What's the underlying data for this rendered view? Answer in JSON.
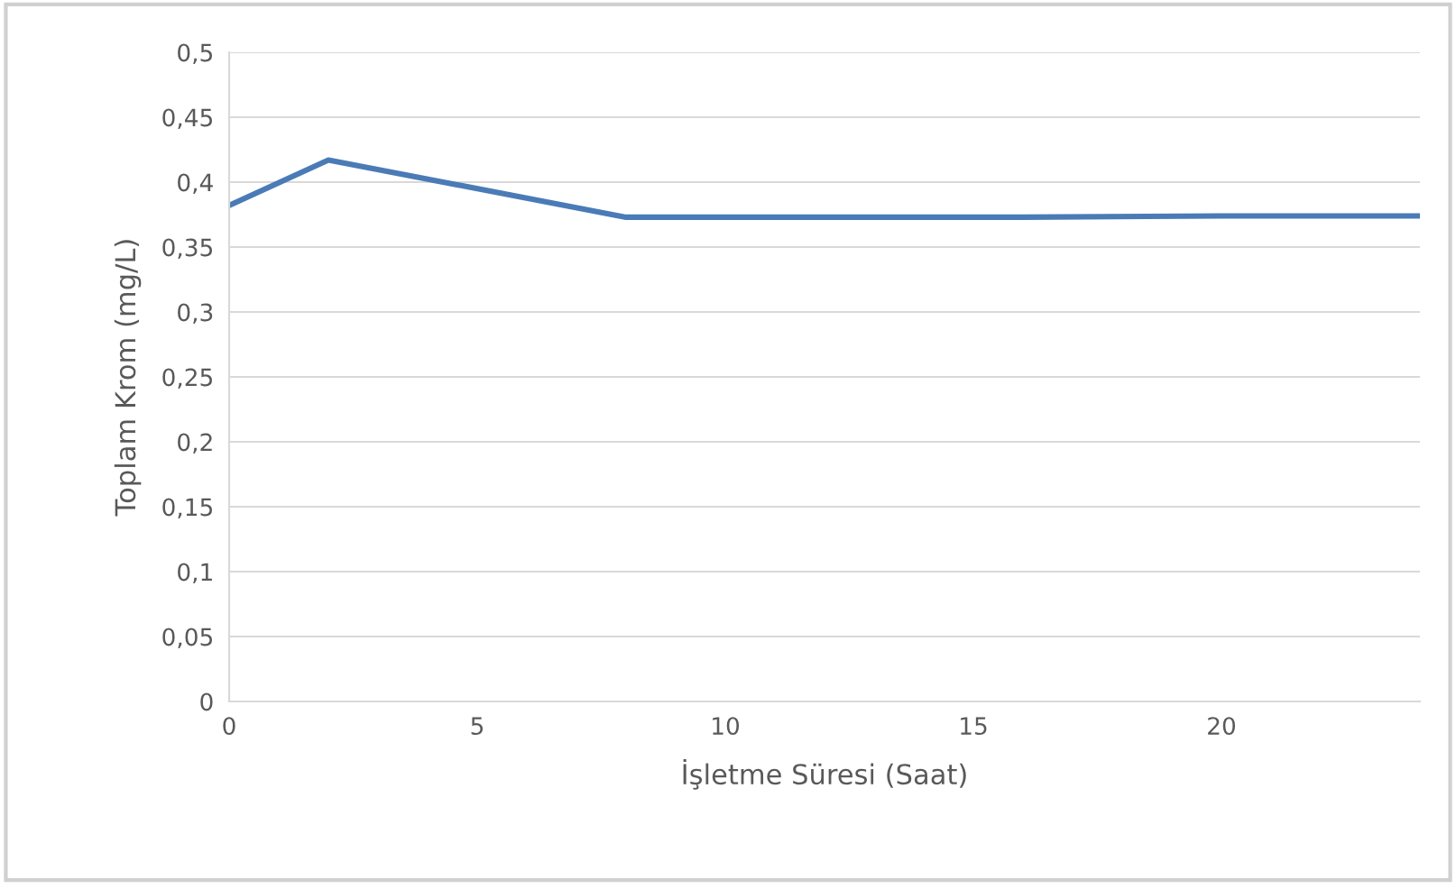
{
  "chart_data": {
    "type": "line",
    "xlabel": "İşletme Süresi (Saat)",
    "ylabel": "Toplam Krom (mg/L)",
    "x": [
      0,
      2,
      8,
      12,
      16,
      20,
      24
    ],
    "series": [
      {
        "color": "#4a7bb7",
        "values": [
          0.382,
          0.417,
          0.373,
          0.373,
          0.373,
          0.374,
          0.374
        ]
      }
    ],
    "xlim": [
      0,
      24
    ],
    "xticks": [
      0,
      5,
      10,
      15,
      20
    ],
    "ylim": [
      0,
      0.5
    ],
    "yticks": [
      {
        "value": 0,
        "label": "0"
      },
      {
        "value": 0.05,
        "label": "0,05"
      },
      {
        "value": 0.1,
        "label": "0,1"
      },
      {
        "value": 0.15,
        "label": "0,15"
      },
      {
        "value": 0.2,
        "label": "0,2"
      },
      {
        "value": 0.25,
        "label": "0,25"
      },
      {
        "value": 0.3,
        "label": "0,3"
      },
      {
        "value": 0.35,
        "label": "0,35"
      },
      {
        "value": 0.4,
        "label": "0,4"
      },
      {
        "value": 0.45,
        "label": "0,45"
      },
      {
        "value": 0.5,
        "label": "0,5"
      }
    ],
    "grid": "y",
    "legend": false,
    "marker": "none",
    "line_style": "solid"
  }
}
